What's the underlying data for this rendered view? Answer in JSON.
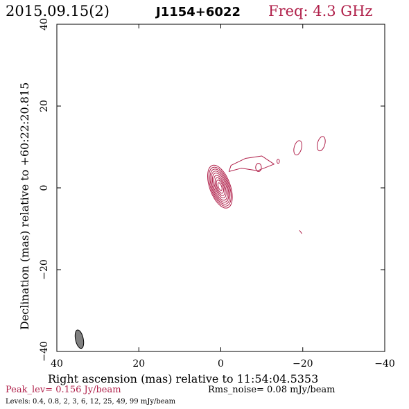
{
  "header": {
    "date": "2015.09.15(2)",
    "source": "J1154+6022",
    "freq": "Freq: 4.3 GHz"
  },
  "footer": {
    "peak": "Peak_lev=  0.156 Jy/beam",
    "rms": "Rms_noise= 0.08 mJy/beam",
    "levels": "Levels: 0.4,  0.8,    2,    3,    6,   12,   25,   49,   99 mJy/beam"
  },
  "colors": {
    "contour": "#b0204a",
    "frame": "#000000",
    "beam_fill": "#808080"
  },
  "chart_data": {
    "type": "contour",
    "title": "J1154+6022",
    "xlabel": "Right ascension (mas) relative to 11:54:04.5353",
    "ylabel": "Declination (mas) relative to +60:22:20.815",
    "xlim": [
      40,
      -40
    ],
    "ylim": [
      -40,
      40
    ],
    "xticks": [
      40,
      20,
      0,
      -20,
      -40
    ],
    "yticks": [
      40,
      20,
      0,
      -20,
      -40
    ],
    "xtick_labels": [
      "40",
      "20",
      "0",
      "−20",
      "−40"
    ],
    "ytick_labels": [
      "40",
      "20",
      "0",
      "−20",
      "−40"
    ],
    "levels_mJy": [
      0.4,
      0.8,
      2,
      3,
      6,
      12,
      25,
      49,
      99
    ],
    "core": {
      "x": 0.2,
      "y": 0.3,
      "pa_deg": 20
    },
    "core_contours": [
      {
        "a": 2.5,
        "b": 5.5
      },
      {
        "a": 2.25,
        "b": 5.0
      },
      {
        "a": 2.0,
        "b": 4.5
      },
      {
        "a": 1.75,
        "b": 4.0
      },
      {
        "a": 1.5,
        "b": 3.5
      },
      {
        "a": 1.2,
        "b": 2.9
      },
      {
        "a": 0.95,
        "b": 2.3
      },
      {
        "a": 0.7,
        "b": 1.7
      },
      {
        "a": 0.4,
        "b": 1.0
      }
    ],
    "jet_points": [
      [
        -2.5,
        5.5
      ],
      [
        -6,
        7.2
      ],
      [
        -10,
        7.8
      ],
      [
        -13,
        5.8
      ],
      [
        -9,
        4.2
      ],
      [
        -5,
        4.8
      ],
      [
        -2.0,
        4.0
      ]
    ],
    "knots": [
      {
        "x": -9.2,
        "y": 5.0,
        "rx": 0.7,
        "ry": 1.0
      },
      {
        "x": -14.0,
        "y": 6.5,
        "rx": 0.3,
        "ry": 0.5
      },
      {
        "x": -24.5,
        "y": 10.8,
        "rx": 0.9,
        "ry": 1.8,
        "pa_deg": -15
      },
      {
        "x": -18.8,
        "y": 9.8,
        "rx": 0.9,
        "ry": 1.8,
        "pa_deg": -15
      }
    ],
    "artifact": [
      [
        -19.2,
        -10.4
      ],
      [
        -19.8,
        -11.2
      ]
    ],
    "beam": {
      "x": 34.5,
      "y": -37.0,
      "major_mas": 4.6,
      "minor_mas": 1.9,
      "pa_deg": 12
    }
  }
}
